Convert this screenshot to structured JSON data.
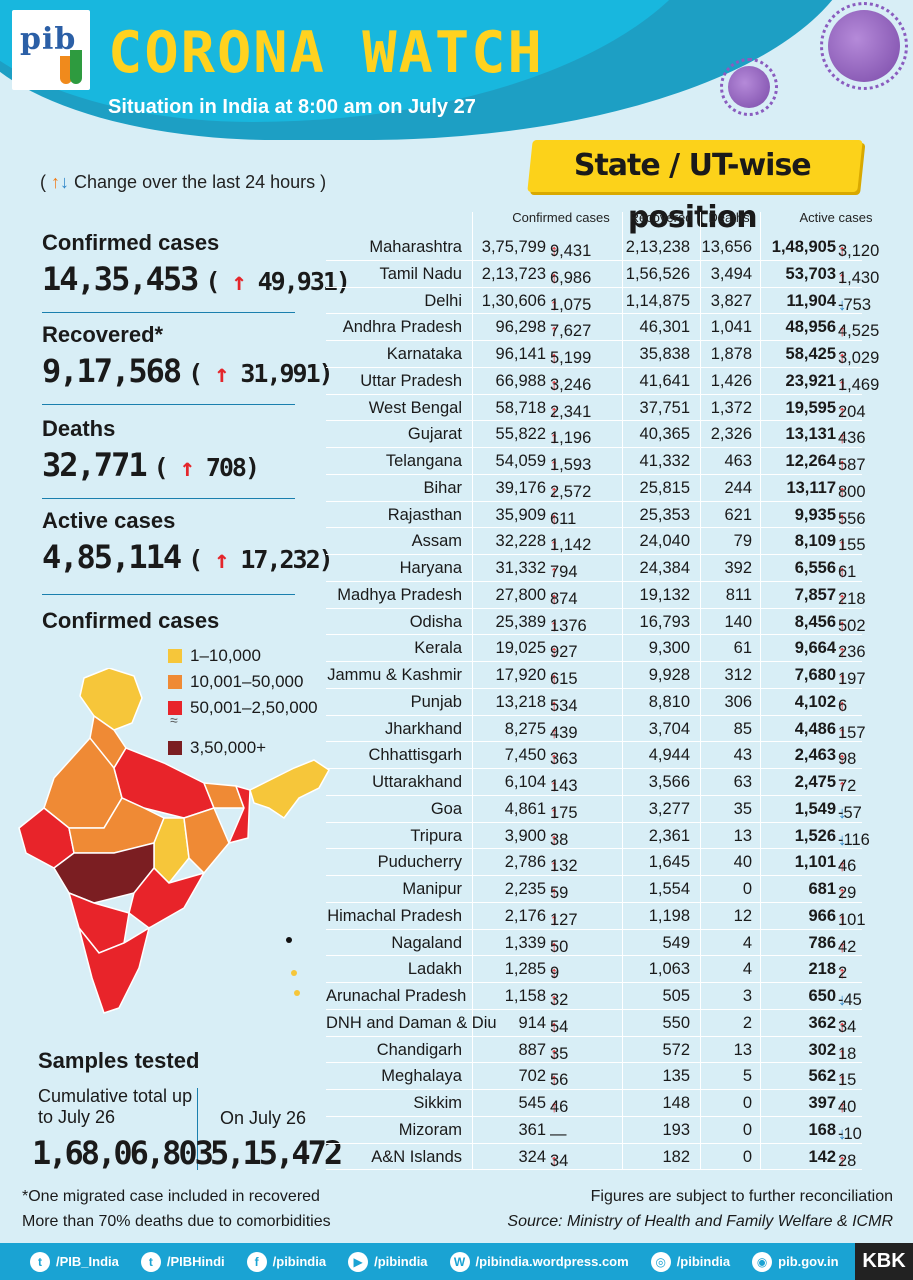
{
  "header": {
    "logo": "pib",
    "title": "CORONA  WATCH",
    "subtitle": "Situation in India at 8:00 am on July 27",
    "section": "State / UT-wise position"
  },
  "change_note": "Change over the last 24 hours",
  "summary": [
    {
      "label": "Confirmed cases",
      "value": "14,35,453",
      "delta": "49,931"
    },
    {
      "label": "Recovered*",
      "value": "9,17,568",
      "delta": "31,991"
    },
    {
      "label": "Deaths",
      "value": "32,771",
      "delta": "708"
    },
    {
      "label": "Active cases",
      "value": "4,85,114",
      "delta": "17,232"
    }
  ],
  "map": {
    "title": "Confirmed cases",
    "legend": [
      "1–10,000",
      "10,001–50,000",
      "50,001–2,50,000",
      "3,50,000+"
    ],
    "colors": [
      "#f6c63a",
      "#ef8a35",
      "#e8242a",
      "#7b1e22"
    ]
  },
  "samples": {
    "title": "Samples tested",
    "cumulative_label": "Cumulative total up to July 26",
    "cumulative_value": "1,68,06,803",
    "daily_label": "On July 26",
    "daily_value": "5,15,472"
  },
  "table": {
    "headers": {
      "confirmed": "Confirmed cases",
      "recovered": "Recovered",
      "deaths": "Deaths",
      "active": "Active cases"
    },
    "rows": [
      {
        "state": "Maharashtra",
        "conf": "3,75,799",
        "cd": "9,431",
        "cdir": "up",
        "rec": "2,13,238",
        "deaths": "13,656",
        "act": "1,48,905",
        "ad": "3,120",
        "adir": "up"
      },
      {
        "state": "Tamil Nadu",
        "conf": "2,13,723",
        "cd": "6,986",
        "cdir": "up",
        "rec": "1,56,526",
        "deaths": "3,494",
        "act": "53,703",
        "ad": "1,430",
        "adir": "up"
      },
      {
        "state": "Delhi",
        "conf": "1,30,606",
        "cd": "1,075",
        "cdir": "up",
        "rec": "1,14,875",
        "deaths": "3,827",
        "act": "11,904",
        "ad": "-753",
        "adir": "down"
      },
      {
        "state": "Andhra Pradesh",
        "conf": "96,298",
        "cd": "7,627",
        "cdir": "up",
        "rec": "46,301",
        "deaths": "1,041",
        "act": "48,956",
        "ad": "4,525",
        "adir": "up"
      },
      {
        "state": "Karnataka",
        "conf": "96,141",
        "cd": "5,199",
        "cdir": "up",
        "rec": "35,838",
        "deaths": "1,878",
        "act": "58,425",
        "ad": "3,029",
        "adir": "up"
      },
      {
        "state": "Uttar Pradesh",
        "conf": "66,988",
        "cd": "3,246",
        "cdir": "up",
        "rec": "41,641",
        "deaths": "1,426",
        "act": "23,921",
        "ad": "1,469",
        "adir": "up"
      },
      {
        "state": "West Bengal",
        "conf": "58,718",
        "cd": "2,341",
        "cdir": "up",
        "rec": "37,751",
        "deaths": "1,372",
        "act": "19,595",
        "ad": "204",
        "adir": "up"
      },
      {
        "state": "Gujarat",
        "conf": "55,822",
        "cd": "1,196",
        "cdir": "up",
        "rec": "40,365",
        "deaths": "2,326",
        "act": "13,131",
        "ad": "436",
        "adir": "up"
      },
      {
        "state": "Telangana",
        "conf": "54,059",
        "cd": "1,593",
        "cdir": "up",
        "rec": "41,332",
        "deaths": "463",
        "act": "12,264",
        "ad": "587",
        "adir": "up"
      },
      {
        "state": "Bihar",
        "conf": "39,176",
        "cd": "2,572",
        "cdir": "up",
        "rec": "25,815",
        "deaths": "244",
        "act": "13,117",
        "ad": "800",
        "adir": "up"
      },
      {
        "state": "Rajasthan",
        "conf": "35,909",
        "cd": "611",
        "cdir": "up",
        "rec": "25,353",
        "deaths": "621",
        "act": "9,935",
        "ad": "556",
        "adir": "up"
      },
      {
        "state": "Assam",
        "conf": "32,228",
        "cd": "1,142",
        "cdir": "up",
        "rec": "24,040",
        "deaths": "79",
        "act": "8,109",
        "ad": "155",
        "adir": "up"
      },
      {
        "state": "Haryana",
        "conf": "31,332",
        "cd": "794",
        "cdir": "up",
        "rec": "24,384",
        "deaths": "392",
        "act": "6,556",
        "ad": "61",
        "adir": "up"
      },
      {
        "state": "Madhya Pradesh",
        "conf": "27,800",
        "cd": "874",
        "cdir": "up",
        "rec": "19,132",
        "deaths": "811",
        "act": "7,857",
        "ad": "218",
        "adir": "up"
      },
      {
        "state": "Odisha",
        "conf": "25,389",
        "cd": "1376",
        "cdir": "up",
        "rec": "16,793",
        "deaths": "140",
        "act": "8,456",
        "ad": "502",
        "adir": "up"
      },
      {
        "state": "Kerala",
        "conf": "19,025",
        "cd": "927",
        "cdir": "up",
        "rec": "9,300",
        "deaths": "61",
        "act": "9,664",
        "ad": "236",
        "adir": "up"
      },
      {
        "state": "Jammu & Kashmir",
        "conf": "17,920",
        "cd": "615",
        "cdir": "up",
        "rec": "9,928",
        "deaths": "312",
        "act": "7,680",
        "ad": "197",
        "adir": "up"
      },
      {
        "state": "Punjab",
        "conf": "13,218",
        "cd": "534",
        "cdir": "up",
        "rec": "8,810",
        "deaths": "306",
        "act": "4,102",
        "ad": "6",
        "adir": "up"
      },
      {
        "state": "Jharkhand",
        "conf": "8,275",
        "cd": "439",
        "cdir": "up",
        "rec": "3,704",
        "deaths": "85",
        "act": "4,486",
        "ad": "157",
        "adir": "up"
      },
      {
        "state": "Chhattisgarh",
        "conf": "7,450",
        "cd": "363",
        "cdir": "up",
        "rec": "4,944",
        "deaths": "43",
        "act": "2,463",
        "ad": "98",
        "adir": "up"
      },
      {
        "state": "Uttarakhand",
        "conf": "6,104",
        "cd": "143",
        "cdir": "up",
        "rec": "3,566",
        "deaths": "63",
        "act": "2,475",
        "ad": "72",
        "adir": "up"
      },
      {
        "state": "Goa",
        "conf": "4,861",
        "cd": "175",
        "cdir": "up",
        "rec": "3,277",
        "deaths": "35",
        "act": "1,549",
        "ad": "-57",
        "adir": "down"
      },
      {
        "state": "Tripura",
        "conf": "3,900",
        "cd": "38",
        "cdir": "up",
        "rec": "2,361",
        "deaths": "13",
        "act": "1,526",
        "ad": "-116",
        "adir": "down"
      },
      {
        "state": "Puducherry",
        "conf": "2,786",
        "cd": "132",
        "cdir": "up",
        "rec": "1,645",
        "deaths": "40",
        "act": "1,101",
        "ad": "46",
        "adir": "up"
      },
      {
        "state": "Manipur",
        "conf": "2,235",
        "cd": "59",
        "cdir": "up",
        "rec": "1,554",
        "deaths": "0",
        "act": "681",
        "ad": "29",
        "adir": "up"
      },
      {
        "state": "Himachal Pradesh",
        "conf": "2,176",
        "cd": "127",
        "cdir": "up",
        "rec": "1,198",
        "deaths": "12",
        "act": "966",
        "ad": "101",
        "adir": "up"
      },
      {
        "state": "Nagaland",
        "conf": "1,339",
        "cd": "50",
        "cdir": "up",
        "rec": "549",
        "deaths": "4",
        "act": "786",
        "ad": "42",
        "adir": "up"
      },
      {
        "state": "Ladakh",
        "conf": "1,285",
        "cd": "9",
        "cdir": "up",
        "rec": "1,063",
        "deaths": "4",
        "act": "218",
        "ad": "2",
        "adir": "up"
      },
      {
        "state": "Arunachal Pradesh",
        "conf": "1,158",
        "cd": "32",
        "cdir": "up",
        "rec": "505",
        "deaths": "3",
        "act": "650",
        "ad": "-45",
        "adir": "down"
      },
      {
        "state": "DNH and Daman & Diu",
        "conf": "914",
        "cd": "54",
        "cdir": "up",
        "rec": "550",
        "deaths": "2",
        "act": "362",
        "ad": "34",
        "adir": "up"
      },
      {
        "state": "Chandigarh",
        "conf": "887",
        "cd": "35",
        "cdir": "up",
        "rec": "572",
        "deaths": "13",
        "act": "302",
        "ad": "18",
        "adir": "up"
      },
      {
        "state": "Meghalaya",
        "conf": "702",
        "cd": "56",
        "cdir": "up",
        "rec": "135",
        "deaths": "5",
        "act": "562",
        "ad": "15",
        "adir": "up"
      },
      {
        "state": "Sikkim",
        "conf": "545",
        "cd": "46",
        "cdir": "up",
        "rec": "148",
        "deaths": "0",
        "act": "397",
        "ad": "40",
        "adir": "up"
      },
      {
        "state": "Mizoram",
        "conf": "361",
        "cd": "",
        "cdir": "none",
        "rec": "193",
        "deaths": "0",
        "act": "168",
        "ad": "-10",
        "adir": "down"
      },
      {
        "state": "A&N Islands",
        "conf": "324",
        "cd": "34",
        "cdir": "up",
        "rec": "182",
        "deaths": "0",
        "act": "142",
        "ad": "28",
        "adir": "up"
      }
    ]
  },
  "footer": {
    "note1": "*One migrated case included in recovered",
    "note2": "More than 70% deaths due to comorbidities",
    "note3": "Figures are subject to further reconciliation",
    "source": "Source: Ministry of Health and Family Welfare & ICMR"
  },
  "social": [
    {
      "icon": "twitter-icon",
      "label": "/PIB_India"
    },
    {
      "icon": "twitter-icon",
      "label": "/PIBHindi"
    },
    {
      "icon": "facebook-icon",
      "label": "/pibindia"
    },
    {
      "icon": "youtube-icon",
      "label": "/pibindia"
    },
    {
      "icon": "wordpress-icon",
      "label": "/pibindia.wordpress.com"
    },
    {
      "icon": "instagram-icon",
      "label": "/pibindia"
    },
    {
      "icon": "globe-icon",
      "label": "pib.gov.in"
    }
  ],
  "brand_tag": "KBK"
}
